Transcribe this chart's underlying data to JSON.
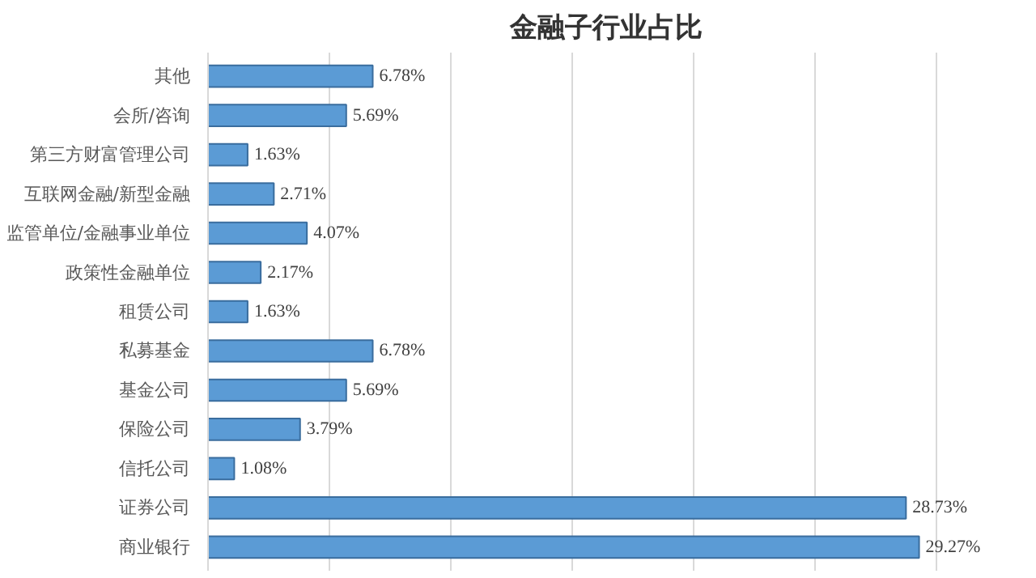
{
  "chart_data": {
    "type": "bar",
    "orientation": "horizontal",
    "title": "金融子行业占比",
    "categories": [
      "其他",
      "会所/咨询",
      "第三方财富管理公司",
      "互联网金融/新型金融",
      "监管单位/金融事业单位",
      "政策性金融单位",
      "租赁公司",
      "私募基金",
      "基金公司",
      "保险公司",
      "信托公司",
      "证券公司",
      "商业银行"
    ],
    "values": [
      6.78,
      5.69,
      1.63,
      2.71,
      4.07,
      2.17,
      1.63,
      6.78,
      5.69,
      3.79,
      1.08,
      28.73,
      29.27
    ],
    "value_labels": [
      "6.78%",
      "5.69%",
      "1.63%",
      "2.71%",
      "4.07%",
      "2.17%",
      "1.63%",
      "6.78%",
      "5.69%",
      "3.79%",
      "1.08%",
      "28.73%",
      "29.27%"
    ],
    "color": "#5b9bd5",
    "grid": "x",
    "tick_labels": "y"
  }
}
